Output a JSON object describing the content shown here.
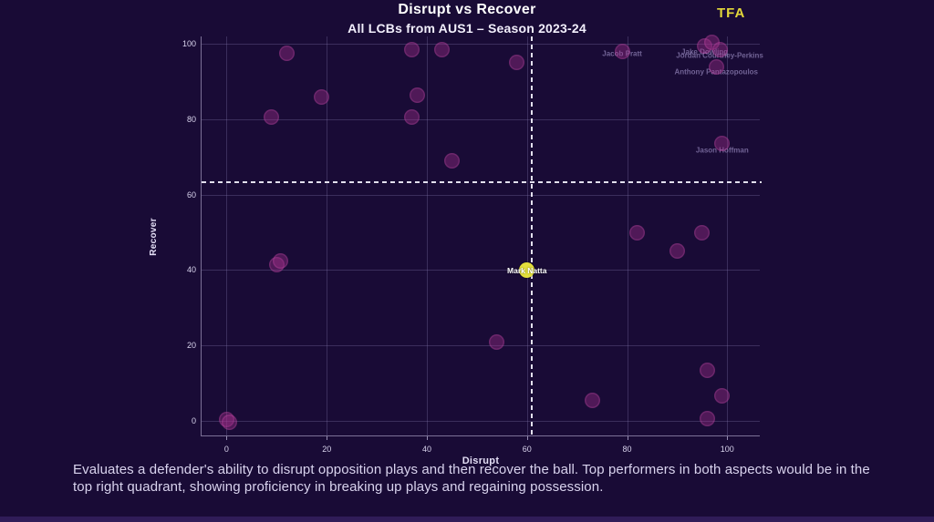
{
  "header": {
    "title": "Disrupt vs Recover",
    "subtitle": "All LCBs from AUS1 – Season 2023-24",
    "logo": "TFA"
  },
  "chart_data": {
    "type": "scatter",
    "title": "Disrupt vs Recover",
    "subtitle": "All LCBs from AUS1 – Season 2023-24",
    "xlabel": "Disrupt",
    "ylabel": "Recover",
    "xlim": [
      -5,
      106.5
    ],
    "ylim": [
      -3.9,
      102
    ],
    "xticks": [
      0,
      20,
      40,
      60,
      80,
      100
    ],
    "yticks": [
      0,
      20,
      40,
      60,
      80,
      100
    ],
    "grid": true,
    "avg_x": 61,
    "avg_y": 63.4,
    "points": [
      {
        "x": 12,
        "y": 97.5
      },
      {
        "x": 37,
        "y": 98.5
      },
      {
        "x": 43,
        "y": 98.5
      },
      {
        "x": 58,
        "y": 95
      },
      {
        "x": 79,
        "y": 98,
        "label": "Jacob Pratt",
        "ldy": 2
      },
      {
        "x": 95.5,
        "y": 99.5,
        "label": "Jake Dowling",
        "ldy": 7
      },
      {
        "x": 97,
        "y": 100.5
      },
      {
        "x": 98.5,
        "y": 98.5,
        "label": "Jordan Courtney-Perkins",
        "ldy": 7
      },
      {
        "x": 97.8,
        "y": 94,
        "label": "Anthony Pantazopoulos",
        "ldy": 6
      },
      {
        "x": 19,
        "y": 86
      },
      {
        "x": 38,
        "y": 86.5
      },
      {
        "x": 9,
        "y": 80.5
      },
      {
        "x": 37,
        "y": 80.5
      },
      {
        "x": 45,
        "y": 69
      },
      {
        "x": 99,
        "y": 73.5,
        "label": "Jason Hoffman",
        "ldy": 7
      },
      {
        "x": 10,
        "y": 41.5
      },
      {
        "x": 10.8,
        "y": 42.3
      },
      {
        "x": 60,
        "y": 40,
        "label": "Mark Natta",
        "ldy": 1,
        "highlight": true
      },
      {
        "x": 82,
        "y": 50
      },
      {
        "x": 95,
        "y": 50
      },
      {
        "x": 90,
        "y": 45
      },
      {
        "x": 54,
        "y": 21
      },
      {
        "x": 73,
        "y": 5.5
      },
      {
        "x": 96,
        "y": 13.5
      },
      {
        "x": 99,
        "y": 6.5
      },
      {
        "x": 96,
        "y": 0.5
      },
      {
        "x": 0,
        "y": 0.3
      },
      {
        "x": 0.5,
        "y": -0.5
      }
    ],
    "colors": {
      "background": "#190b36",
      "marker": "#a3308c",
      "highlight": "#e3df3c",
      "grid": "#85679af",
      "axis": "#d8d3ec",
      "title": "#ffffff",
      "logo": "#e3d83a"
    },
    "legend": "none"
  },
  "footer": {
    "description": "Evaluates a defender's ability to disrupt opposition plays and then recover the ball. Top performers in both aspects would be in the top right quadrant, showing proficiency in breaking up plays and regaining possession."
  }
}
